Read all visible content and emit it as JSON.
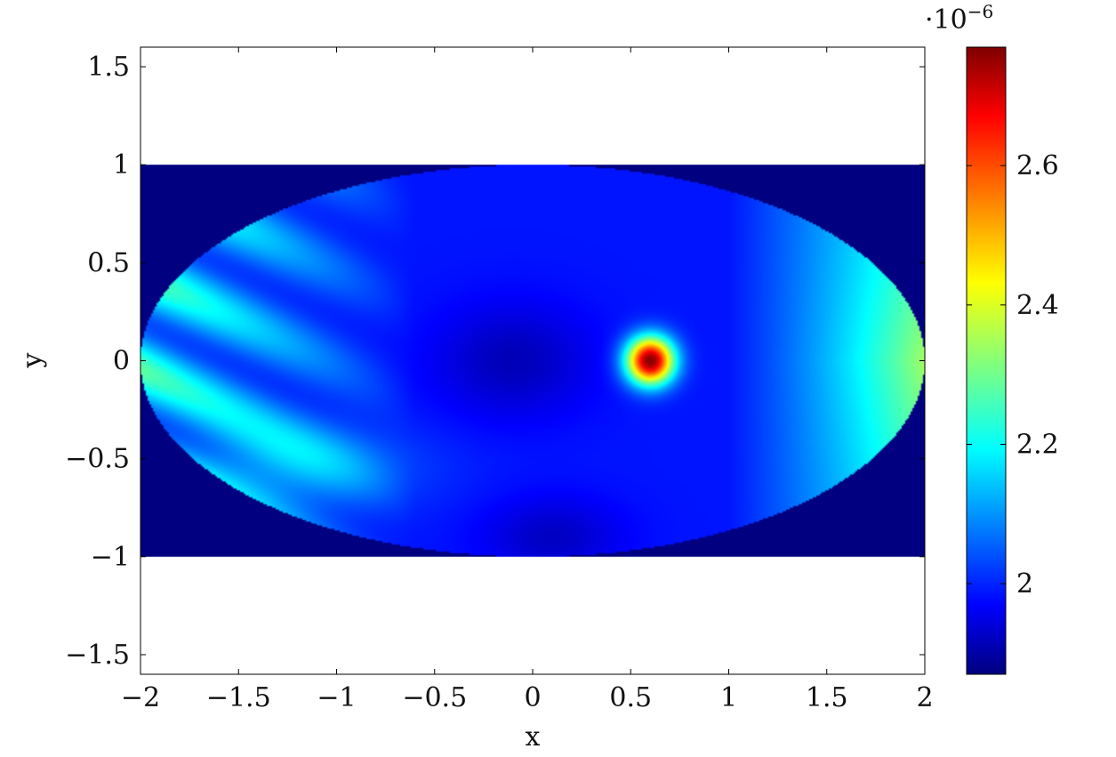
{
  "chart_data": {
    "type": "heatmap",
    "title": "",
    "xlabel": "x",
    "ylabel": "y",
    "xlim": [
      -2,
      2
    ],
    "ylim": [
      -1.6,
      1.6
    ],
    "data_domain": {
      "x": [
        -2,
        2
      ],
      "y": [
        -1,
        1
      ],
      "shape": "ellipse",
      "semi_axes": [
        2,
        1
      ]
    },
    "x_ticks": [
      -2,
      -1.5,
      -1,
      -0.5,
      0,
      0.5,
      1,
      1.5,
      2
    ],
    "x_tick_labels": [
      "−2",
      "−1.5",
      "−1",
      "−0.5",
      "0",
      "0.5",
      "1",
      "1.5",
      "2"
    ],
    "y_ticks": [
      -1.5,
      -1,
      -0.5,
      0,
      0.5,
      1,
      1.5
    ],
    "y_tick_labels": [
      "−1.5",
      "−1",
      "−0.5",
      "0",
      "0.5",
      "1",
      "1.5"
    ],
    "colormap": "jet",
    "background_value": 1.87,
    "colorbar": {
      "range": [
        1.87,
        2.77
      ],
      "ticks": [
        2.0,
        2.2,
        2.4,
        2.6
      ],
      "tick_labels": [
        "2",
        "2.2",
        "2.4",
        "2.6"
      ],
      "exponent_label": "·10",
      "exponent_sup": "−6"
    },
    "peak": {
      "x": 0.6,
      "y": 0.0,
      "value": 2.77
    },
    "grid": false
  }
}
